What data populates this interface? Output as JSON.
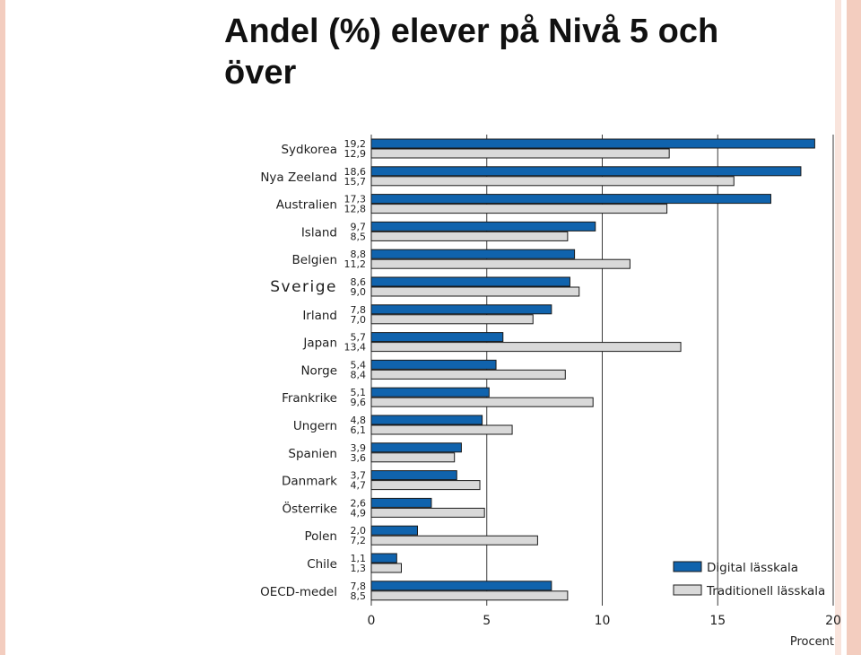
{
  "slide": {
    "title": "Andel (%) elever på Nivå 5 och över"
  },
  "colors": {
    "digital": "#1063ad",
    "traditional": "#d9d9d9",
    "stripe_outer": "#f3cdbf",
    "stripe_inner": "#f9e4dc"
  },
  "chart_data": {
    "type": "bar",
    "orientation": "horizontal",
    "categories": [
      "Sydkorea",
      "Nya Zeeland",
      "Australien",
      "Island",
      "Belgien",
      "Sverige",
      "Irland",
      "Japan",
      "Norge",
      "Frankrike",
      "Ungern",
      "Spanien",
      "Danmark",
      "Österrike",
      "Polen",
      "Chile",
      "OECD-medel"
    ],
    "highlight_category": "Sverige",
    "series": [
      {
        "name": "Digital lässkala",
        "values": [
          19.2,
          18.6,
          17.3,
          9.7,
          8.8,
          8.6,
          7.8,
          5.7,
          5.4,
          5.1,
          4.8,
          3.9,
          3.7,
          2.6,
          2.0,
          1.1,
          7.8
        ],
        "labels": [
          "19,2",
          "18,6",
          "17,3",
          "9,7",
          "8,8",
          "8,6",
          "7,8",
          "5,7",
          "5,4",
          "5,1",
          "4,8",
          "3,9",
          "3,7",
          "2,6",
          "2,0",
          "1,1",
          "7,8"
        ]
      },
      {
        "name": "Traditionell lässkala",
        "values": [
          12.9,
          15.7,
          12.8,
          8.5,
          11.2,
          9.0,
          7.0,
          13.4,
          8.4,
          9.6,
          6.1,
          3.6,
          4.7,
          4.9,
          7.2,
          1.3,
          8.5
        ],
        "labels": [
          "12,9",
          "15,7",
          "12,8",
          "8,5",
          "11,2",
          "9,0",
          "7,0",
          "13,4",
          "8,4",
          "9,6",
          "6,1",
          "3,6",
          "4,7",
          "4,9",
          "7,2",
          "1,3",
          "8,5"
        ]
      }
    ],
    "xlim": [
      0,
      20
    ],
    "xticks": [
      0,
      5,
      10,
      15,
      20
    ],
    "xlabel": "Procent",
    "grid": "vertical",
    "legend_position": "bottom-right"
  }
}
